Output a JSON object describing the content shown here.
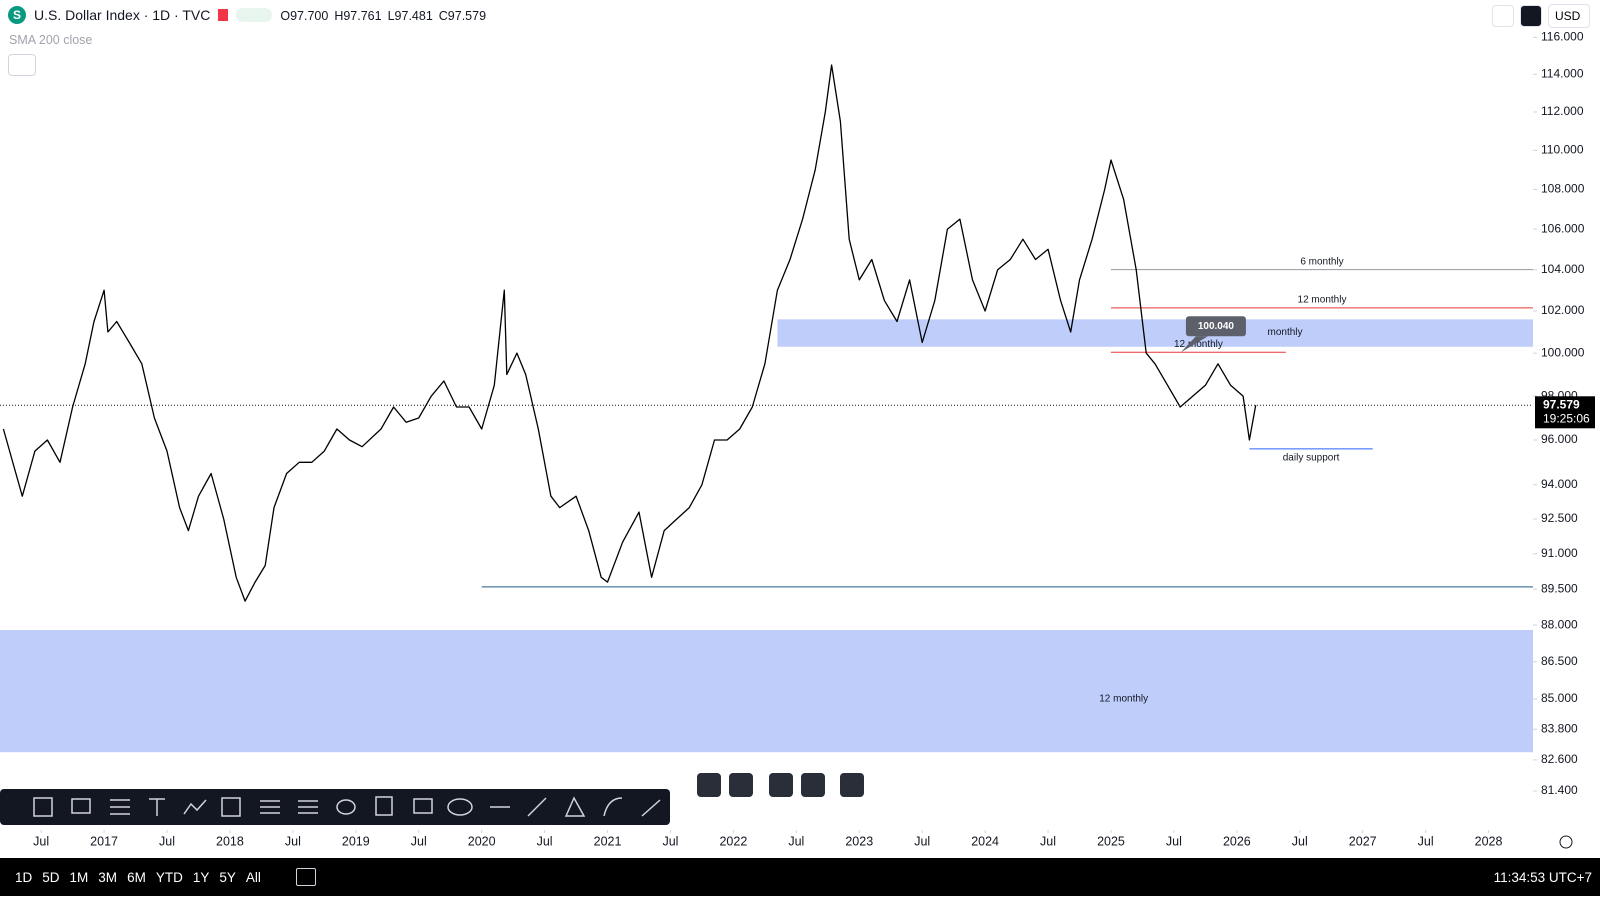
{
  "header": {
    "logo": "S",
    "title": "U.S. Dollar Index · 1D · TVC",
    "ohlc": [
      "O97.700",
      "H97.761",
      "L97.481",
      "C97.579"
    ],
    "indicator": "SMA 200 close",
    "currency": "USD"
  },
  "chart_data": {
    "type": "line",
    "color": "#000000",
    "log_scale": true,
    "grid": false,
    "x": [
      2016.2,
      2016.35,
      2016.45,
      2016.55,
      2016.65,
      2016.75,
      2016.85,
      2016.92,
      2017.0,
      2017.03,
      2017.1,
      2017.2,
      2017.3,
      2017.4,
      2017.5,
      2017.6,
      2017.67,
      2017.75,
      2017.85,
      2017.95,
      2018.05,
      2018.12,
      2018.2,
      2018.28,
      2018.35,
      2018.45,
      2018.55,
      2018.65,
      2018.75,
      2018.85,
      2018.95,
      2019.05,
      2019.2,
      2019.3,
      2019.4,
      2019.5,
      2019.6,
      2019.7,
      2019.8,
      2019.9,
      2020.0,
      2020.1,
      2020.18,
      2020.2,
      2020.28,
      2020.35,
      2020.45,
      2020.55,
      2020.62,
      2020.75,
      2020.85,
      2020.95,
      2021.0,
      2021.12,
      2021.25,
      2021.35,
      2021.45,
      2021.55,
      2021.65,
      2021.75,
      2021.85,
      2021.95,
      2022.05,
      2022.15,
      2022.25,
      2022.35,
      2022.45,
      2022.55,
      2022.65,
      2022.73,
      2022.78,
      2022.85,
      2022.92,
      2023.0,
      2023.1,
      2023.2,
      2023.3,
      2023.4,
      2023.5,
      2023.6,
      2023.7,
      2023.8,
      2023.9,
      2024.0,
      2024.1,
      2024.2,
      2024.3,
      2024.4,
      2024.5,
      2024.6,
      2024.68,
      2024.75,
      2024.85,
      2024.95,
      2025.0,
      2025.1,
      2025.2,
      2025.28,
      2025.35,
      2025.45,
      2025.55,
      2025.65,
      2025.75,
      2025.85,
      2025.95,
      2026.05,
      2026.1,
      2026.15
    ],
    "values": [
      96.5,
      93.5,
      95.5,
      96.0,
      95.0,
      97.5,
      99.5,
      101.5,
      103.0,
      101.0,
      101.5,
      100.5,
      99.5,
      97.0,
      95.5,
      93.0,
      92.0,
      93.5,
      94.5,
      92.5,
      90.0,
      89.0,
      89.8,
      90.5,
      93.0,
      94.5,
      95.0,
      95.0,
      95.5,
      96.5,
      96.0,
      95.7,
      96.5,
      97.5,
      96.8,
      97.0,
      98.0,
      98.7,
      97.5,
      97.5,
      96.5,
      98.5,
      103.0,
      99.0,
      100.0,
      99.0,
      96.5,
      93.5,
      93.0,
      93.5,
      92.0,
      90.0,
      89.8,
      91.5,
      92.8,
      90.0,
      92.0,
      92.5,
      93.0,
      94.0,
      96.0,
      96.0,
      96.5,
      97.5,
      99.5,
      103.0,
      104.5,
      106.5,
      109.0,
      112.0,
      114.5,
      111.5,
      105.5,
      103.5,
      104.5,
      102.5,
      101.5,
      103.5,
      100.5,
      102.5,
      106.0,
      106.5,
      103.5,
      102.0,
      104.0,
      104.5,
      105.5,
      104.5,
      105.0,
      102.5,
      101.0,
      103.5,
      105.5,
      108.0,
      109.5,
      107.5,
      104.0,
      100.0,
      99.5,
      98.5,
      97.5,
      98.0,
      98.5,
      99.5,
      98.5,
      98.0,
      96.0,
      97.579
    ],
    "xlim": [
      2016.173,
      2028.353
    ],
    "xticks": [
      {
        "value": 2016.5,
        "label": "Jul"
      },
      2017,
      {
        "value": 2017.5,
        "label": "Jul"
      },
      2018,
      {
        "value": 2018.5,
        "label": "Jul"
      },
      2019,
      {
        "value": 2019.5,
        "label": "Jul"
      },
      2020,
      {
        "value": 2020.5,
        "label": "Jul"
      },
      2021,
      {
        "value": 2021.5,
        "label": "Jul"
      },
      2022,
      {
        "value": 2022.5,
        "label": "Jul"
      },
      2023,
      {
        "value": 2023.5,
        "label": "Jul"
      },
      2024,
      {
        "value": 2024.5,
        "label": "Jul"
      },
      2025,
      {
        "value": 2025.5,
        "label": "Jul"
      },
      2026,
      {
        "value": 2026.5,
        "label": "Jul"
      },
      2027,
      {
        "value": 2027.5,
        "label": "Jul"
      },
      2028
    ],
    "ylim": [
      80.3,
      116.4
    ],
    "yticks": [
      {
        "value": 116,
        "label": "116.000"
      },
      {
        "value": 114,
        "label": "114.000"
      },
      {
        "value": 112,
        "label": "112.000"
      },
      {
        "value": 110,
        "label": "110.000"
      },
      {
        "value": 108,
        "label": "108.000"
      },
      {
        "value": 106,
        "label": "106.000"
      },
      {
        "value": 104,
        "label": "104.000"
      },
      {
        "value": 102,
        "label": "102.000"
      },
      {
        "value": 100,
        "label": "100.000"
      },
      {
        "value": 98,
        "label": "98.000"
      },
      {
        "value": 96,
        "label": "96.000"
      },
      {
        "value": 94,
        "label": "94.000"
      },
      {
        "value": 92.5,
        "label": "92.500"
      },
      {
        "value": 91,
        "label": "91.000"
      },
      {
        "value": 89.5,
        "label": "89.500"
      },
      {
        "value": 88,
        "label": "88.000"
      },
      {
        "value": 86.5,
        "label": "86.500"
      },
      {
        "value": 85,
        "label": "85.000"
      },
      {
        "value": 83.8,
        "label": "83.800"
      },
      {
        "value": 82.6,
        "label": "82.600"
      },
      {
        "value": 81.4,
        "label": "81.400"
      }
    ],
    "last_price": 97.579,
    "countdown": "19:25:06",
    "zones": [
      {
        "label": "monthly",
        "top": 101.6,
        "bottom": 100.3,
        "from": 2022.35,
        "color": "#bfcdfb"
      },
      {
        "label": "12 monthly",
        "top": 87.8,
        "bottom": 82.9,
        "color": "#bfcdfb"
      }
    ],
    "lines": [
      {
        "label": "6 monthly",
        "price": 104.0,
        "from": 2025.0,
        "color": "#9598a1"
      },
      {
        "label": "12 monthly",
        "price": 102.15,
        "from": 2025.0,
        "color": "#e53935"
      },
      {
        "label": "12 monthly",
        "price": {
          "value": 100.04,
          "label": "100.040"
        },
        "from": 2025.0,
        "to": 2026.39,
        "color": "#e53935"
      },
      {
        "label": "daily support",
        "price": 95.6,
        "from": 2026.1,
        "to": 2027.08,
        "color": "#2962ff"
      },
      {
        "price": 89.6,
        "from": 2020.0,
        "color": "#1e5a8c"
      }
    ]
  },
  "footer": {
    "ranges": [
      "1D",
      "5D",
      "1M",
      "3M",
      "6M",
      "YTD",
      "1Y",
      "5Y",
      "All"
    ],
    "clock": "11:34:53 UTC+7"
  }
}
